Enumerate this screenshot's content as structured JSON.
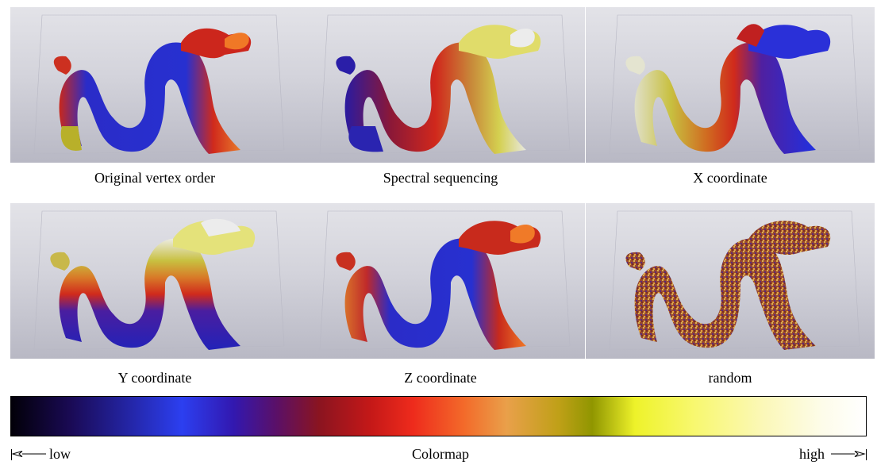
{
  "panels": [
    {
      "caption": "Original vertex order",
      "scheme": "original"
    },
    {
      "caption": "Spectral sequencing",
      "scheme": "spectral"
    },
    {
      "caption": "X coordinate",
      "scheme": "x"
    },
    {
      "caption": "Y coordinate",
      "scheme": "y"
    },
    {
      "caption": "Z coordinate",
      "scheme": "z"
    },
    {
      "caption": "random",
      "scheme": "random"
    }
  ],
  "colormap": {
    "title": "Colormap",
    "low_label": "low",
    "high_label": "high"
  },
  "colors": {
    "low": "#020008",
    "blue": "#2c3ff0",
    "red": "#ee2b1c",
    "orange": "#e9a04a",
    "yellow": "#eef22a",
    "high": "#ffffff"
  }
}
